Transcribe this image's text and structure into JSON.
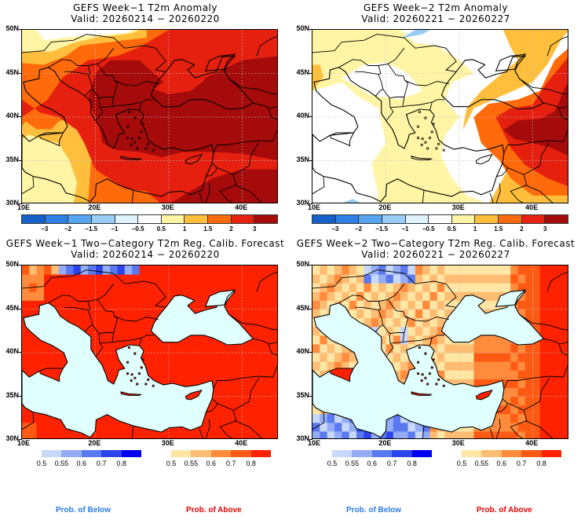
{
  "panels": [
    {
      "id": "week1-anomaly",
      "title": "GEFS Week−1 T2m Anomaly",
      "valid": "Valid: 20260214 − 20260220",
      "type": "anomaly"
    },
    {
      "id": "week2-anomaly",
      "title": "GEFS Week−2 T2m Anomaly",
      "valid": "Valid: 20260221 − 20260227",
      "type": "anomaly"
    },
    {
      "id": "week1-prob",
      "title": "GEFS Week−1 Two−Category T2m Reg. Calib. Forecast",
      "valid": "Valid: 20260214 − 20260220",
      "type": "probability"
    },
    {
      "id": "week2-prob",
      "title": "GEFS Week−2 Two−Category T2m Reg. Calib. Forecast",
      "valid": "Valid: 20260221 − 20260227",
      "type": "probability"
    }
  ],
  "axes": {
    "lat_labels": [
      "50N",
      "45N",
      "40N",
      "35N",
      "30N"
    ],
    "lon_labels": [
      "10E",
      "20E",
      "30E",
      "40E"
    ]
  },
  "anomaly_colorbar": {
    "colors": [
      "#1560c8",
      "#2c80e8",
      "#55a5f0",
      "#98cdf8",
      "#dff4ff",
      "#ffffff",
      "#fff5a5",
      "#ffbf3c",
      "#ff6a0a",
      "#e6200f",
      "#a50b0b"
    ],
    "labels": [
      "−3",
      "−2",
      "−1.5",
      "−1",
      "−0.5",
      "0.5",
      "1",
      "1.5",
      "2",
      "3"
    ]
  },
  "prob_below_colorbar": {
    "colors": [
      "#c8d8fa",
      "#94acf5",
      "#5a78f0",
      "#2c44ec",
      "#0000f0"
    ],
    "labels": [
      "0.5",
      "0.55",
      "0.6",
      "0.7",
      "0.8"
    ],
    "caption": "Prob. of Below",
    "caption_color": "#2a7be8"
  },
  "prob_above_colorbar": {
    "colors": [
      "#ffe6a5",
      "#ffbd73",
      "#ff8c3c",
      "#ff5a14",
      "#ff2200"
    ],
    "labels": [
      "0.5",
      "0.55",
      "0.6",
      "0.7",
      "0.8"
    ],
    "caption": "Prob. of Above",
    "caption_color": "#e60000"
  },
  "map_colors": {
    "sea_prob": "#e0ffff",
    "coast": "#000000"
  }
}
